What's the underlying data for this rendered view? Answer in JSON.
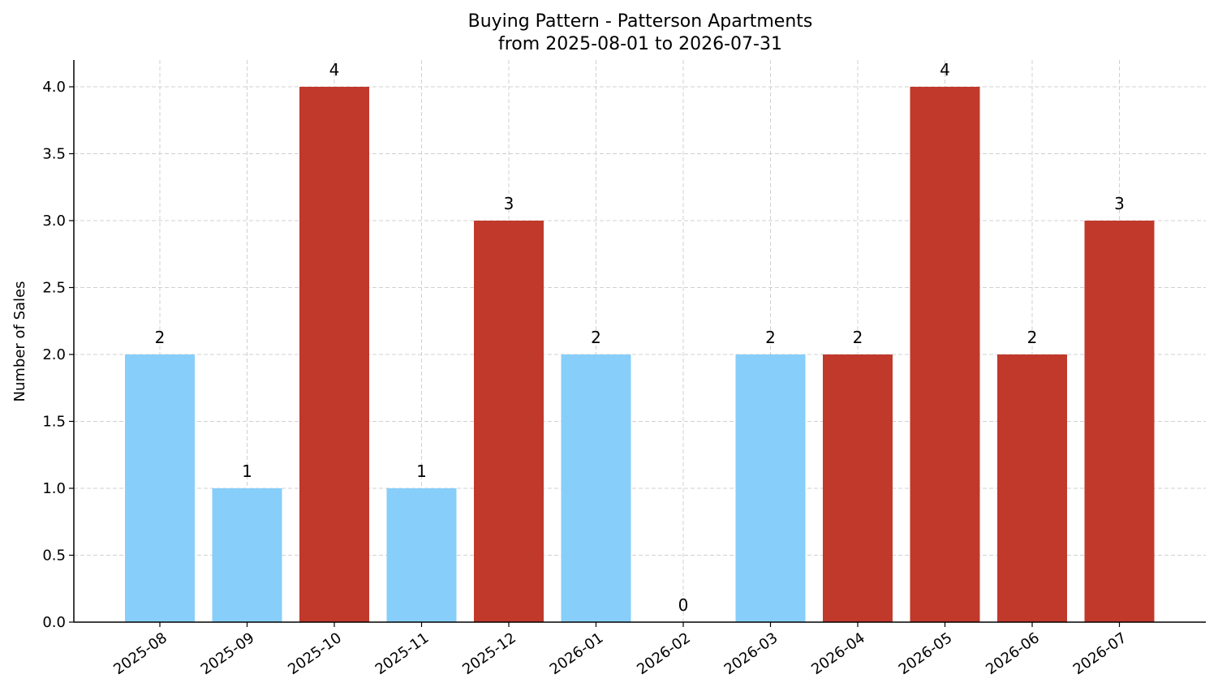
{
  "chart_data": {
    "type": "bar",
    "title": "Buying Pattern - Patterson Apartments",
    "subtitle": "from 2025-08-01 to 2026-07-31",
    "xlabel": "",
    "ylabel": "Number of Sales",
    "categories": [
      "2025-08",
      "2025-09",
      "2025-10",
      "2025-11",
      "2025-12",
      "2026-01",
      "2026-02",
      "2026-03",
      "2026-04",
      "2026-05",
      "2026-06",
      "2026-07"
    ],
    "values": [
      2,
      1,
      4,
      1,
      3,
      2,
      0,
      2,
      2,
      4,
      2,
      3
    ],
    "bar_colors": [
      "#87cefa",
      "#87cefa",
      "#c0392b",
      "#87cefa",
      "#c0392b",
      "#87cefa",
      "#87cefa",
      "#87cefa",
      "#c0392b",
      "#c0392b",
      "#c0392b",
      "#c0392b"
    ],
    "ylim": [
      0,
      4.2
    ],
    "yticks": [
      "0.0",
      "0.5",
      "1.0",
      "1.5",
      "2.0",
      "2.5",
      "3.0",
      "3.5",
      "4.0"
    ],
    "grid": true,
    "data_labels": true
  }
}
